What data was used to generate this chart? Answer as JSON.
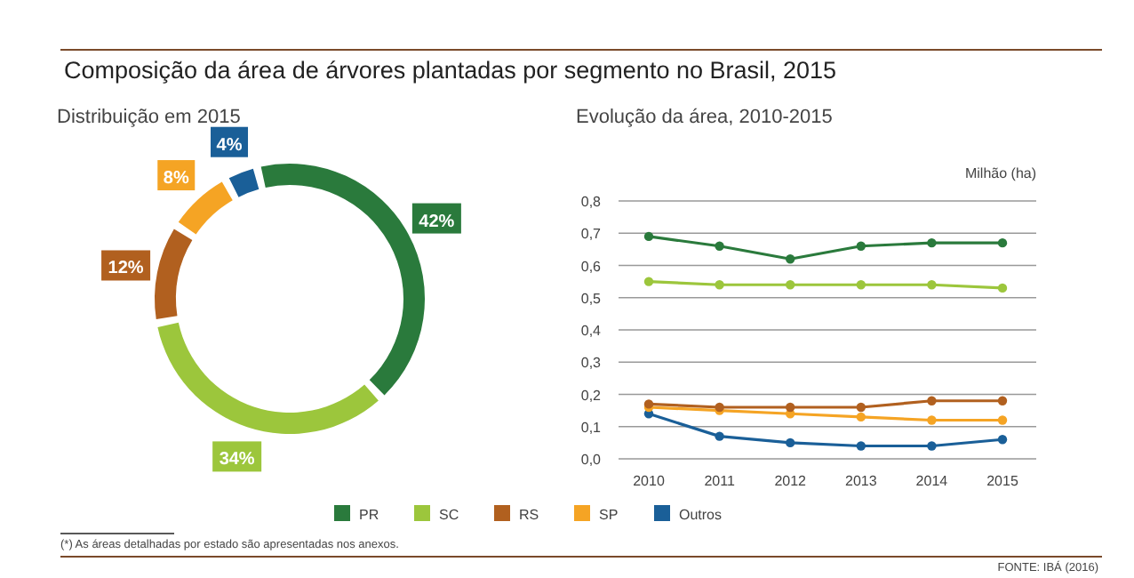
{
  "chart_data": [
    {
      "type": "donut",
      "title": "Composição da área de árvores plantadas por segmento no Brasil, 2015",
      "subtitle": "Distribuição em 2015",
      "categories": [
        "PR",
        "SC",
        "RS",
        "SP",
        "Outros"
      ],
      "values": [
        42,
        34,
        12,
        8,
        4
      ],
      "colors": [
        "#2a7a3c",
        "#9cc63c",
        "#b1601f",
        "#f5a424",
        "#1a5f98"
      ],
      "value_labels": [
        "42%",
        "34%",
        "12%",
        "8%",
        "4%"
      ],
      "legend": "bottom",
      "annotations": [
        "(*) As áreas detalhadas por estado são apresentadas nos anexos."
      ]
    },
    {
      "type": "line",
      "subtitle": "Evolução da área, 2010-2015",
      "ylabel": "Milhão (ha)",
      "categories": [
        "2010",
        "2011",
        "2012",
        "2013",
        "2014",
        "2015"
      ],
      "series": [
        {
          "color": "#2a7a3c",
          "values": [
            0.69,
            0.66,
            0.62,
            0.66,
            0.67,
            0.67
          ]
        },
        {
          "color": "#9cc63c",
          "values": [
            0.55,
            0.54,
            0.54,
            0.54,
            0.54,
            0.53
          ]
        },
        {
          "color": "#b1601f",
          "values": [
            0.17,
            0.16,
            0.16,
            0.16,
            0.18,
            0.18
          ]
        },
        {
          "color": "#f5a424",
          "values": [
            0.16,
            0.15,
            0.14,
            0.13,
            0.12,
            0.12
          ]
        },
        {
          "color": "#1a5f98",
          "values": [
            0.14,
            0.07,
            0.05,
            0.04,
            0.04,
            0.06
          ]
        }
      ],
      "ylim": [
        0,
        0.8
      ],
      "yticks": [
        {
          "value": 0,
          "label": "0,0"
        },
        {
          "value": 0.1,
          "label": "0,1"
        },
        {
          "value": 0.2,
          "label": "0,2"
        },
        {
          "value": 0.3,
          "label": "0,3"
        },
        {
          "value": 0.4,
          "label": "0,4"
        },
        {
          "value": 0.5,
          "label": "0,5"
        },
        {
          "value": 0.6,
          "label": "0,6"
        },
        {
          "value": 0.7,
          "label": "0,7"
        },
        {
          "value": 0.8,
          "label": "0,8"
        }
      ],
      "grid": "y",
      "marker": "circle",
      "line_style": "solid",
      "annotations": [
        "FONTE: IBÁ (2016)"
      ]
    }
  ]
}
